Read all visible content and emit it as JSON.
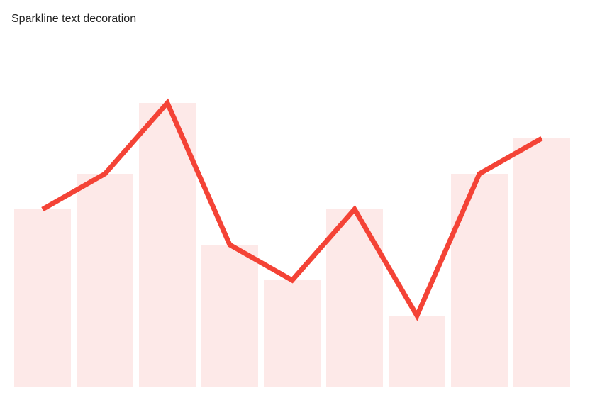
{
  "chart_data": {
    "type": "sparkline",
    "title": "Sparkline text decoration",
    "values": [
      5,
      6,
      8,
      4,
      3,
      5,
      2,
      6,
      7
    ],
    "color": "#f44336",
    "fill_color": "#fde9e8"
  }
}
